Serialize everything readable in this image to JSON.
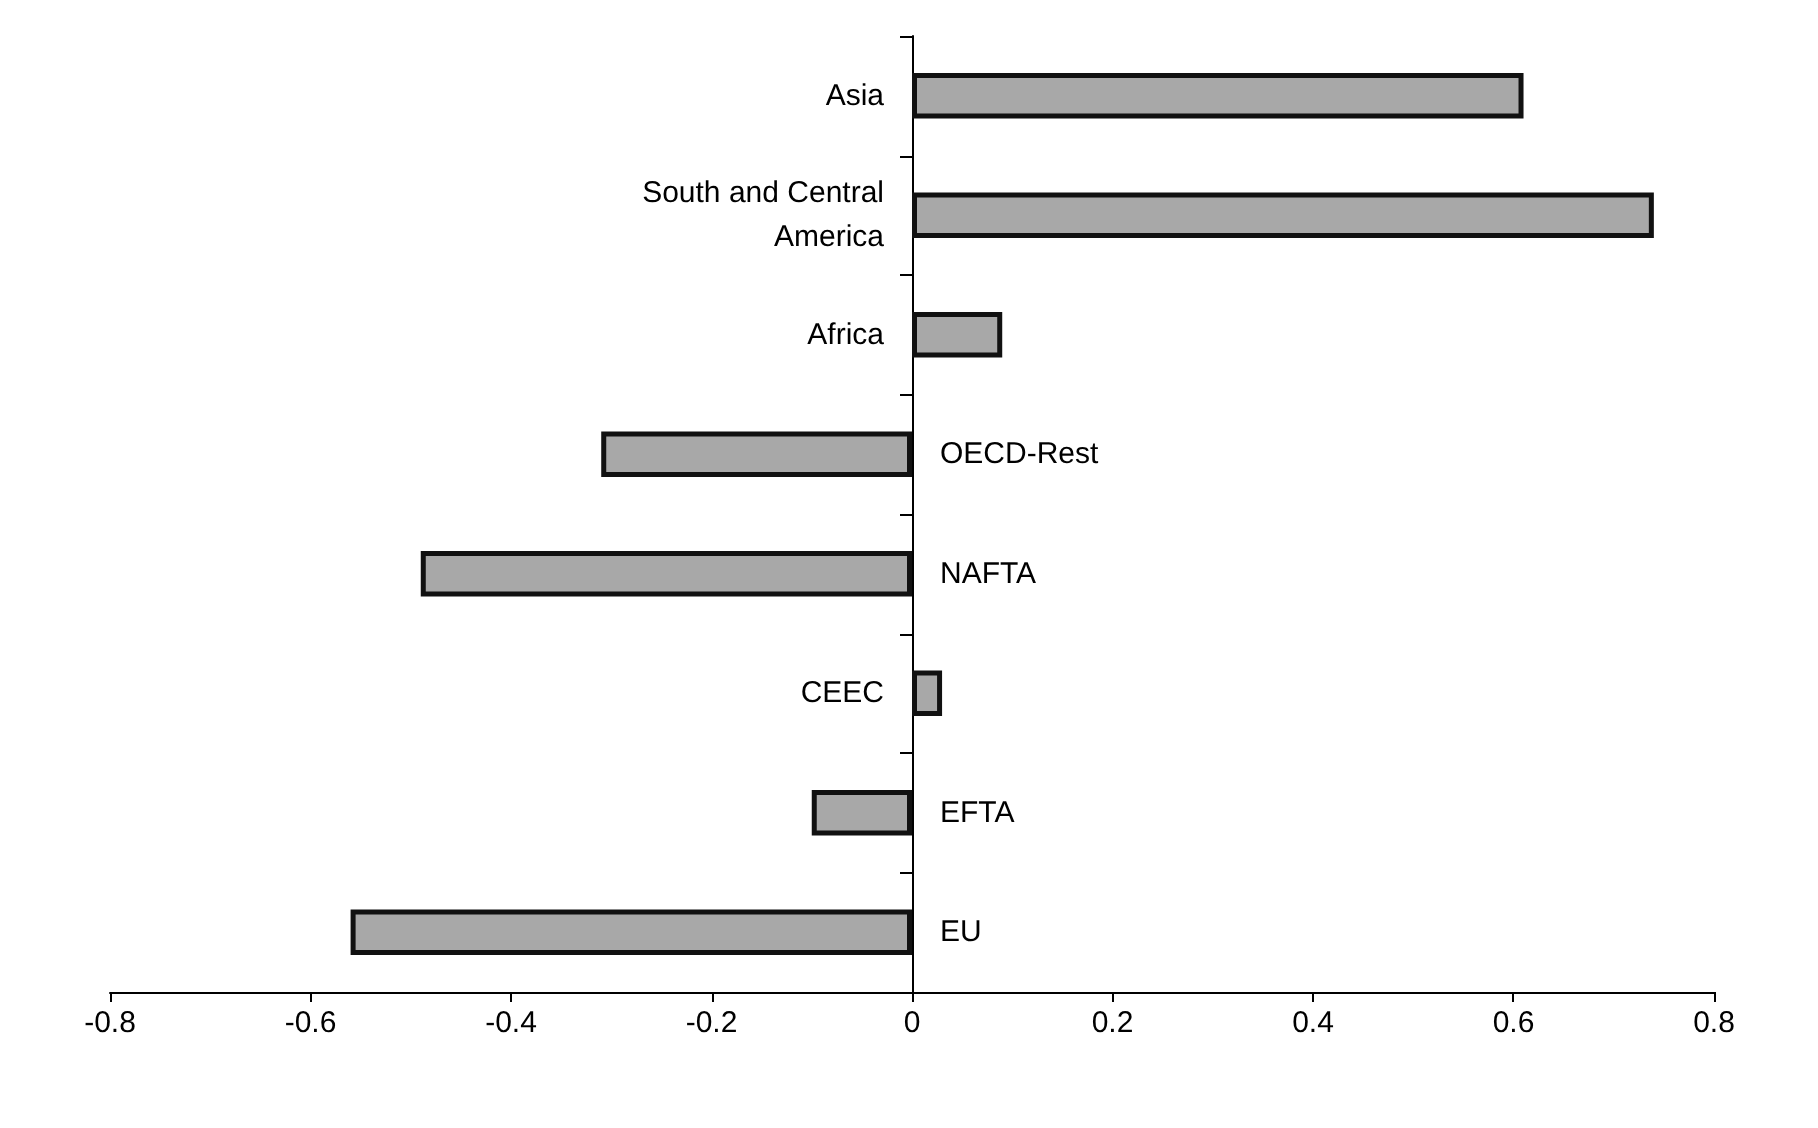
{
  "chart_data": {
    "type": "bar",
    "orientation": "horizontal",
    "categories": [
      "Asia",
      "South and Central America",
      "Africa",
      "OECD-Rest",
      "NAFTA",
      "CEEC",
      "EFTA",
      "EU"
    ],
    "values": [
      0.61,
      0.74,
      0.09,
      -0.31,
      -0.49,
      0.03,
      -0.1,
      -0.56
    ],
    "color": "#a8a8a8",
    "xlim": [
      -0.8,
      0.8
    ],
    "xticks": [
      -0.8,
      -0.6,
      -0.4,
      -0.2,
      0,
      0.2,
      0.4,
      0.6,
      0.8
    ],
    "grid": false,
    "tick_labels": "x"
  }
}
